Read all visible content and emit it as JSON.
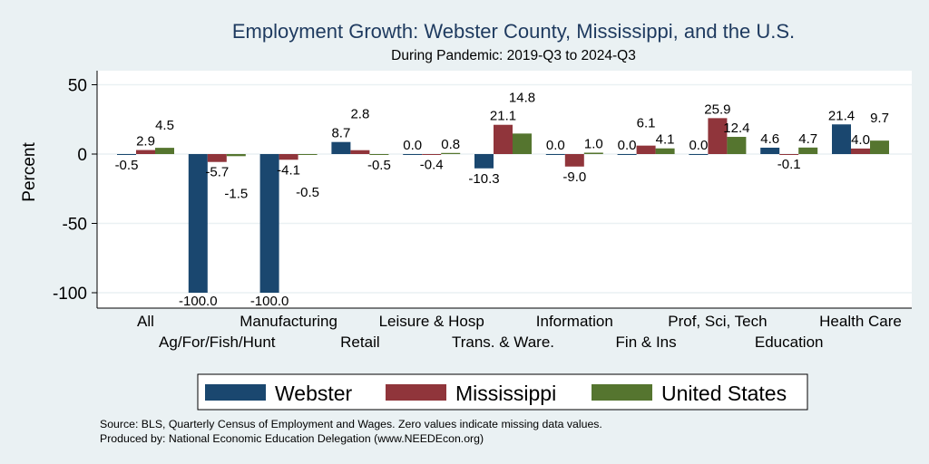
{
  "chart_data": {
    "type": "bar",
    "title": "Employment Growth: Webster County, Mississippi, and the U.S.",
    "subtitle": "During Pandemic: 2019-Q3 to 2024-Q3",
    "ylabel": "Percent",
    "xlabel": "",
    "ylim": [
      -110,
      60
    ],
    "yticks": [
      50,
      0,
      -50,
      -100
    ],
    "grid": true,
    "legend_position": "bottom",
    "categories": [
      "All",
      "Ag/For/Fish/Hunt",
      "Manufacturing",
      "Retail",
      "Leisure & Hosp",
      "Trans. & Ware.",
      "Information",
      "Fin & Ins",
      "Prof, Sci, Tech",
      "Education",
      "Health Care"
    ],
    "series": [
      {
        "name": "Webster",
        "color": "#1a476f",
        "values": [
          -0.5,
          -100.0,
          -100.0,
          8.7,
          0.0,
          -10.3,
          0.0,
          0.0,
          0.0,
          4.6,
          21.4
        ]
      },
      {
        "name": "Mississippi",
        "color": "#90353b",
        "values": [
          2.9,
          -5.7,
          -4.1,
          2.8,
          -0.4,
          21.1,
          -9.0,
          6.1,
          25.9,
          -0.1,
          4.0
        ]
      },
      {
        "name": "United States",
        "color": "#55752f",
        "values": [
          4.5,
          -1.5,
          -0.5,
          -0.5,
          0.8,
          14.8,
          1.0,
          4.1,
          12.4,
          4.7,
          9.7
        ]
      }
    ],
    "notes": [
      "Source: BLS, Quarterly Census of Employment and Wages. Zero values indicate missing data values.",
      "Produced by: National Economic Education Delegation (www.NEEDEcon.org)"
    ]
  }
}
